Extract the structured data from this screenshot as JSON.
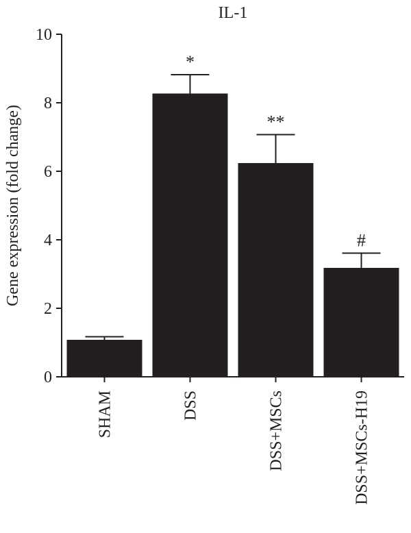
{
  "chart_data": {
    "type": "bar",
    "title": "IL-1",
    "xlabel": "",
    "ylabel": "Gene expression (fold change)",
    "ylim": [
      0,
      10
    ],
    "yticks": [
      0,
      2,
      4,
      6,
      8,
      10
    ],
    "categories": [
      "SHAM",
      "DSS",
      "DSS+MSCs",
      "DSS+MSCs-H19"
    ],
    "values": [
      1.08,
      8.27,
      6.24,
      3.18
    ],
    "errors": [
      0.09,
      0.55,
      0.83,
      0.43
    ],
    "annotations": [
      "",
      "*",
      "**",
      "#"
    ],
    "bar_color": "#231f20",
    "grid": false
  }
}
